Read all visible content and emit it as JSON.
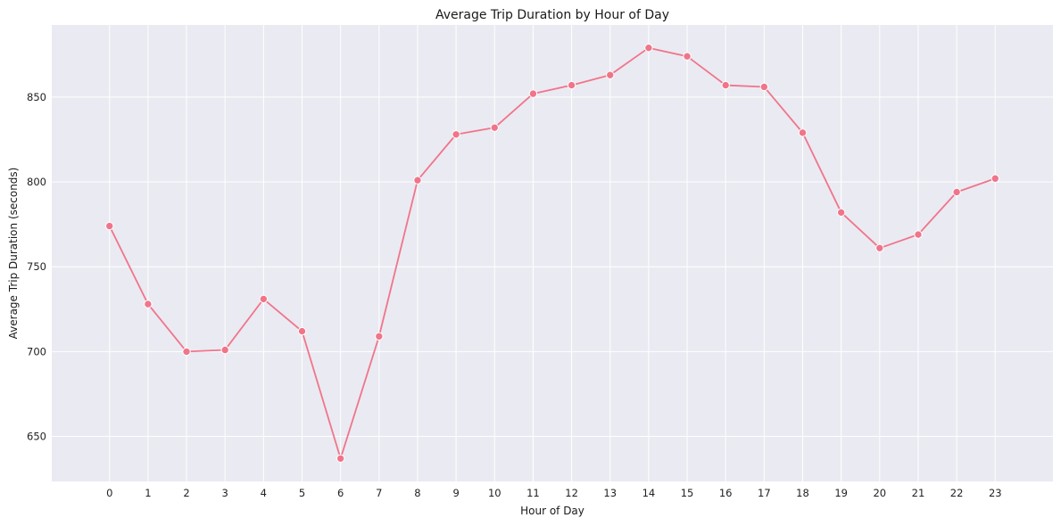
{
  "colors": {
    "plot_background": "#eaeaf2",
    "grid": "#ffffff",
    "series": "#f0758a",
    "text": "#1a1a1a"
  },
  "chart_data": {
    "type": "line",
    "title": "Average Trip Duration by Hour of Day",
    "xlabel": "Hour of Day",
    "ylabel": "Average Trip Duration (seconds)",
    "x": [
      0,
      1,
      2,
      3,
      4,
      5,
      6,
      7,
      8,
      9,
      10,
      11,
      12,
      13,
      14,
      15,
      16,
      17,
      18,
      19,
      20,
      21,
      22,
      23
    ],
    "x_tick_labels": [
      "0",
      "1",
      "2",
      "3",
      "4",
      "5",
      "6",
      "7",
      "8",
      "9",
      "10",
      "11",
      "12",
      "13",
      "14",
      "15",
      "16",
      "17",
      "18",
      "19",
      "20",
      "21",
      "22",
      "23"
    ],
    "y_ticks": [
      650,
      700,
      750,
      800,
      850
    ],
    "y_tick_labels": [
      "650",
      "700",
      "750",
      "800",
      "850"
    ],
    "xlim": [
      -1.5,
      24.5
    ],
    "ylim": [
      623.5,
      892.5
    ],
    "grid": true,
    "marker": "circle",
    "series": [
      {
        "name": "Average Trip Duration",
        "values": [
          774,
          728,
          700,
          701,
          731,
          712,
          637,
          709,
          801,
          828,
          832,
          852,
          857,
          863,
          879,
          874,
          857,
          856,
          829,
          782,
          761,
          769,
          794,
          802
        ]
      }
    ]
  }
}
